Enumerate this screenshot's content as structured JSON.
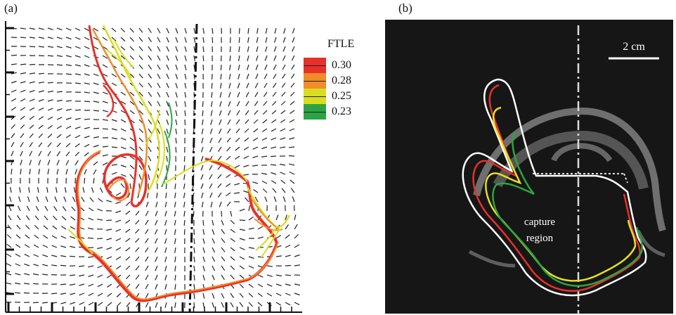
{
  "panel_a": {
    "label": "(a)",
    "legend": {
      "title": "FTLE",
      "entries": [
        {
          "value": "0.30",
          "color": "#e8302a"
        },
        {
          "value": "0.28",
          "color": "#f08c2a"
        },
        {
          "value": "0.25",
          "color": "#d9dd22"
        },
        {
          "value": "0.23",
          "color": "#2ca444"
        }
      ]
    }
  },
  "panel_b": {
    "label": "(b)",
    "scale_bar": "2 cm",
    "annotation": "capture region",
    "annotation_lines": [
      "capture",
      "region"
    ],
    "curve_colors": [
      "#ffffff",
      "#e8302a",
      "#e6e020",
      "#2ca444"
    ]
  }
}
